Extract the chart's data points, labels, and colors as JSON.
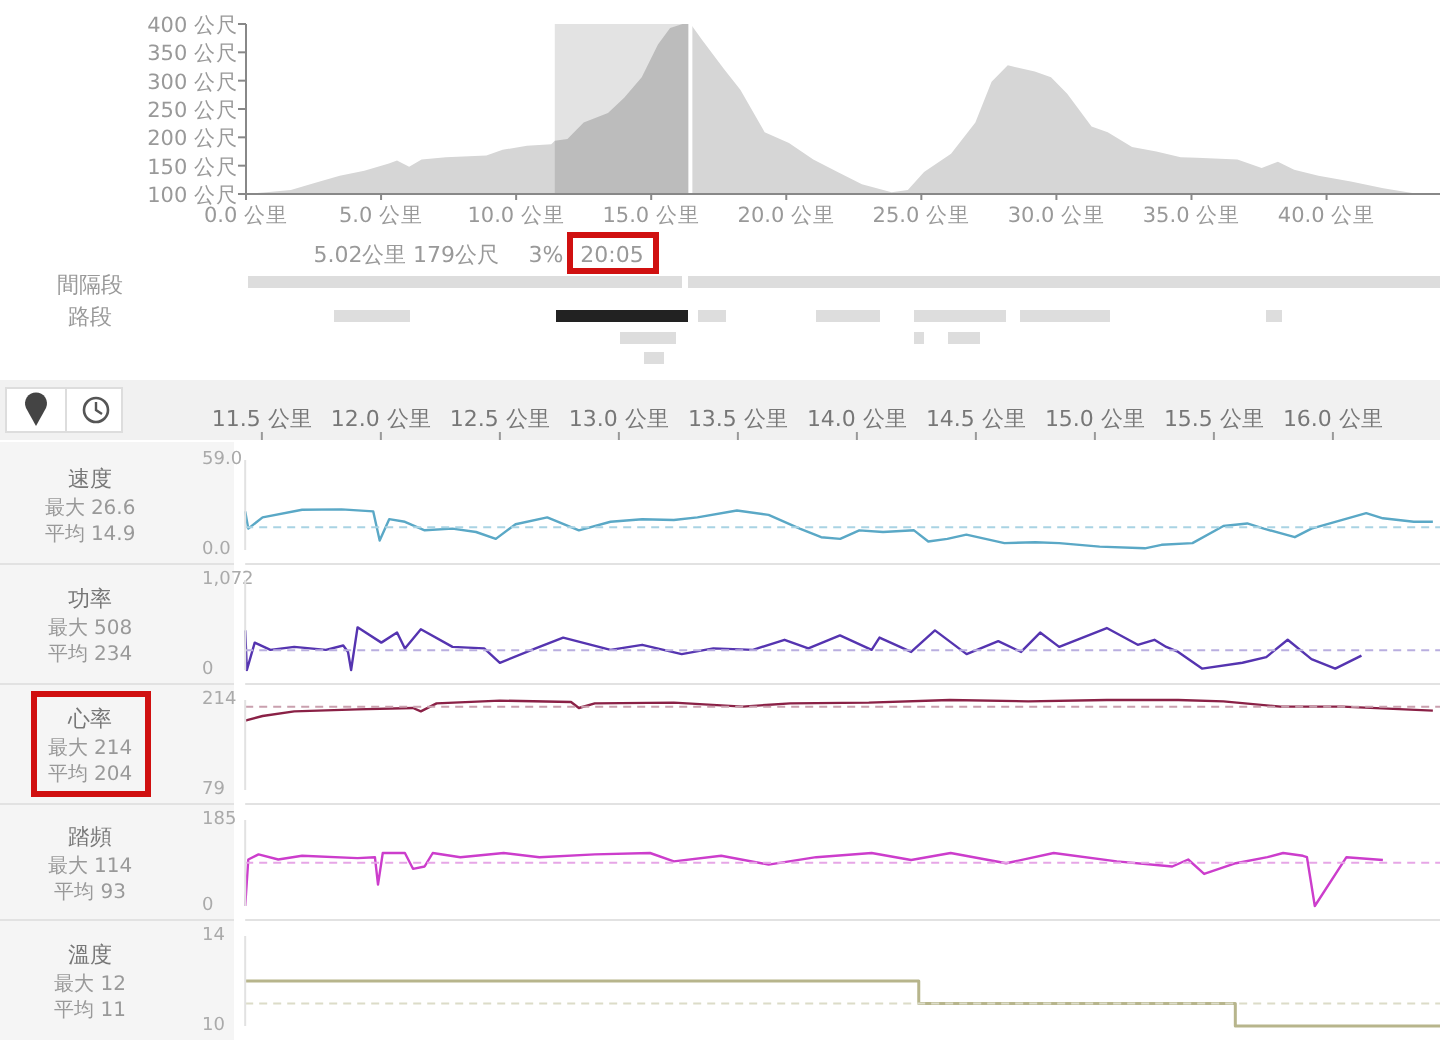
{
  "chart_data": [
    {
      "type": "area",
      "color": "#d6d6d6",
      "x": [
        0,
        0.75,
        1.66,
        2.57,
        3.47,
        4.38,
        5.29,
        5.59,
        6.04,
        6.5,
        7.4,
        8.9,
        9.5,
        10.4,
        11.3,
        11.43,
        11.9,
        12.5,
        13.4,
        14.0,
        14.65,
        15.25,
        15.7,
        16.16,
        16.46,
        16.9,
        17.7,
        18.3,
        19.2,
        20.1,
        21.0,
        21.9,
        22.8,
        23.9,
        24.5,
        25.1,
        26.1,
        27.0,
        27.6,
        28.2,
        29.2,
        29.8,
        30.4,
        31.3,
        31.9,
        32.8,
        33.7,
        34.6,
        35.2,
        36.7,
        37.6,
        38.2,
        38.8,
        39.7,
        40.9,
        42.1,
        43.4
      ],
      "values": [
        100,
        103,
        107,
        120,
        132,
        141,
        154,
        159,
        148,
        161,
        165,
        168,
        178,
        185,
        188,
        194,
        197,
        226,
        243,
        270,
        306,
        364,
        393,
        400,
        400,
        371,
        320,
        284,
        209,
        190,
        161,
        139,
        117,
        103,
        107,
        139,
        171,
        226,
        298,
        327,
        316,
        306,
        277,
        219,
        209,
        183,
        175,
        165,
        164,
        161,
        146,
        157,
        143,
        132,
        122,
        110,
        100
      ],
      "xlim": [
        0,
        44.2
      ],
      "xticks": [
        {
          "value": 0,
          "label": "0.0 公里"
        },
        {
          "value": 5,
          "label": "5.0 公里"
        },
        {
          "value": 10,
          "label": "10.0 公里"
        },
        {
          "value": 15,
          "label": "15.0 公里"
        },
        {
          "value": 20,
          "label": "20.0 公里"
        },
        {
          "value": 25,
          "label": "25.0 公里"
        },
        {
          "value": 30,
          "label": "30.0 公里"
        },
        {
          "value": 35,
          "label": "35.0 公里"
        },
        {
          "value": 40,
          "label": "40.0 公里"
        }
      ],
      "ylim": [
        100,
        400
      ],
      "yticks": [
        {
          "value": 100,
          "label": "100 公尺"
        },
        {
          "value": 150,
          "label": "150 公尺"
        },
        {
          "value": 200,
          "label": "200 公尺"
        },
        {
          "value": 250,
          "label": "250 公尺"
        },
        {
          "value": 300,
          "label": "300 公尺"
        },
        {
          "value": 350,
          "label": "350 公尺"
        },
        {
          "value": 400,
          "label": "400 公尺"
        }
      ],
      "bands": [
        {
          "axis": "x",
          "from": 11.43,
          "to": 16.45,
          "color": "#e3e3e3"
        }
      ],
      "ref_lines": [
        {
          "axis": "x",
          "value": 16.45,
          "color": "#ffffff"
        }
      ],
      "annotations": [
        "5.02公里",
        "179公尺",
        "3%",
        "20:05",
        "間隔段",
        "路段"
      ]
    },
    {
      "type": "line",
      "title": "速度",
      "annotations": [
        "最大 26.6",
        "平均 14.9"
      ],
      "color": "#5aa8c6",
      "x": [
        11.43,
        11.443,
        11.503,
        11.669,
        11.835,
        11.968,
        11.995,
        12.035,
        12.101,
        12.184,
        12.301,
        12.4,
        12.483,
        12.566,
        12.699,
        12.832,
        12.965,
        13.098,
        13.231,
        13.33,
        13.496,
        13.629,
        13.76,
        13.85,
        13.93,
        14.01,
        14.11,
        14.24,
        14.3,
        14.38,
        14.46,
        14.62,
        14.75,
        14.85,
        15.02,
        15.21,
        15.28,
        15.41,
        15.54,
        15.64,
        15.71,
        15.84,
        15.91,
        16.01,
        16.14,
        16.21,
        16.34,
        16.42
      ],
      "values": [
        25.3,
        14.0,
        21.4,
        26.4,
        26.6,
        25.3,
        6.2,
        20.2,
        18.5,
        12.9,
        14.0,
        11.8,
        7.3,
        16.9,
        21.4,
        12.9,
        18.5,
        20.2,
        19.7,
        21.4,
        25.9,
        23.0,
        14.0,
        8.4,
        7.3,
        12.9,
        11.8,
        12.9,
        5.6,
        7.3,
        10.1,
        4.5,
        5.1,
        4.5,
        2.2,
        1.1,
        3.4,
        4.5,
        15.7,
        17.4,
        14.0,
        8.4,
        14.0,
        18.5,
        24.2,
        20.8,
        18.5,
        18.5
      ],
      "xlim": [
        11.43,
        16.45
      ],
      "xticks": [
        {
          "value": 11.5,
          "label": "11.5 公里"
        },
        {
          "value": 12,
          "label": "12.0 公里"
        },
        {
          "value": 12.5,
          "label": "12.5 公里"
        },
        {
          "value": 13,
          "label": "13.0 公里"
        },
        {
          "value": 13.5,
          "label": "13.5 公里"
        },
        {
          "value": 14,
          "label": "14.0 公里"
        },
        {
          "value": 14.5,
          "label": "14.5 公里"
        },
        {
          "value": 15,
          "label": "15.0 公里"
        },
        {
          "value": 15.5,
          "label": "15.5 公里"
        },
        {
          "value": 16,
          "label": "16.0 公里"
        }
      ],
      "ylim": [
        0,
        59
      ],
      "yticks": [
        {
          "value": 0,
          "label": "0.0"
        },
        {
          "value": 59,
          "label": "59.0"
        }
      ],
      "ref_lines": [
        {
          "axis": "y",
          "value": 14.9,
          "color": "#a9d3e3",
          "line_style": "dashed"
        }
      ]
    },
    {
      "type": "line",
      "title": "功率",
      "annotations": [
        "最大 508",
        "平均 234"
      ],
      "color": "#5534b0",
      "x": [
        11.43,
        11.437,
        11.47,
        11.536,
        11.636,
        11.769,
        11.842,
        11.862,
        11.875,
        11.902,
        12.002,
        12.068,
        12.101,
        12.168,
        12.301,
        12.434,
        12.5,
        12.65,
        12.766,
        12.965,
        13.098,
        13.264,
        13.397,
        13.563,
        13.696,
        13.796,
        13.929,
        14.062,
        14.095,
        14.228,
        14.328,
        14.461,
        14.594,
        14.69,
        14.77,
        14.85,
        15.05,
        15.18,
        15.25,
        15.3,
        15.35,
        15.45,
        15.62,
        15.72,
        15.81,
        15.91,
        16.01,
        16.12
      ],
      "values": [
        472,
        0,
        326,
        240,
        275,
        240,
        292,
        215,
        0,
        508,
        326,
        446,
        257,
        485,
        275,
        257,
        86,
        257,
        386,
        240,
        300,
        189,
        257,
        240,
        360,
        257,
        412,
        240,
        386,
        215,
        472,
        189,
        343,
        215,
        446,
        275,
        500,
        300,
        360,
        275,
        215,
        17,
        86,
        154,
        360,
        129,
        17,
        172
      ],
      "xlim": [
        11.43,
        16.45
      ],
      "tick_labels": "y",
      "ylim": [
        0,
        1072
      ],
      "yticks": [
        0,
        {
          "value": 1072,
          "label": "1,072"
        }
      ],
      "ref_lines": [
        {
          "axis": "y",
          "value": 234,
          "color": "#b9aedf",
          "line_style": "dashed"
        }
      ]
    },
    {
      "type": "line",
      "title": "心率",
      "annotations": [
        "最大 214",
        "平均 204"
      ],
      "color": "#8a2146",
      "x": [
        11.43,
        11.503,
        11.636,
        11.902,
        12.135,
        12.168,
        12.234,
        12.5,
        12.799,
        12.832,
        12.899,
        13.231,
        13.52,
        13.72,
        14.05,
        14.39,
        14.72,
        15.05,
        15.35,
        15.54,
        15.78,
        16.04,
        16.42
      ],
      "values": [
        183,
        190,
        197,
        200,
        202,
        197,
        209,
        213,
        211,
        202,
        209,
        210,
        204,
        209,
        210,
        214,
        212,
        214,
        214,
        212,
        204,
        204,
        198
      ],
      "xlim": [
        11.43,
        16.45
      ],
      "tick_labels": "y",
      "ylim": [
        79,
        214
      ],
      "yticks": [
        79,
        214
      ],
      "ref_lines": [
        {
          "axis": "y",
          "value": 204,
          "color": "#c9a0ae",
          "line_style": "dashed"
        }
      ]
    },
    {
      "type": "line",
      "title": "踏頻",
      "annotations": [
        "最大 114",
        "平均 93"
      ],
      "color": "#cc3dcc",
      "x": [
        11.43,
        11.443,
        11.486,
        11.569,
        11.669,
        11.902,
        11.975,
        11.988,
        12.008,
        12.101,
        12.135,
        12.184,
        12.218,
        12.334,
        12.516,
        12.666,
        12.899,
        13.131,
        13.231,
        13.43,
        13.629,
        13.829,
        14.062,
        14.228,
        14.394,
        14.627,
        14.827,
        15.092,
        15.325,
        15.392,
        15.459,
        15.592,
        15.725,
        15.791,
        15.874,
        15.891,
        15.924,
        16.057,
        16.21
      ],
      "values": [
        0,
        100,
        111,
        100,
        108,
        103,
        105,
        46,
        114,
        114,
        80,
        85,
        114,
        105,
        114,
        105,
        111,
        114,
        96,
        108,
        89,
        105,
        114,
        99,
        114,
        92,
        114,
        96,
        85,
        100,
        69,
        92,
        105,
        114,
        108,
        105,
        0,
        105,
        99
      ],
      "xlim": [
        11.43,
        16.45
      ],
      "tick_labels": "y",
      "ylim": [
        0,
        185
      ],
      "yticks": [
        0,
        185
      ],
      "ref_lines": [
        {
          "axis": "y",
          "value": 93,
          "color": "#e6a6e6",
          "line_style": "dashed"
        }
      ]
    },
    {
      "type": "step",
      "title": "溫度",
      "annotations": [
        "最大 12",
        "平均 11"
      ],
      "color": "#b7b58c",
      "x": [
        11.43,
        14.26,
        15.59,
        16.45
      ],
      "values": [
        12,
        11,
        10,
        10
      ],
      "xlim": [
        11.43,
        16.45
      ],
      "tick_labels": "y",
      "ylim": [
        10,
        14
      ],
      "yticks": [
        10,
        14
      ],
      "ref_lines": [
        {
          "axis": "y",
          "value": 11,
          "color": "#dcdcc8",
          "line_style": "dashed"
        }
      ]
    }
  ]
}
